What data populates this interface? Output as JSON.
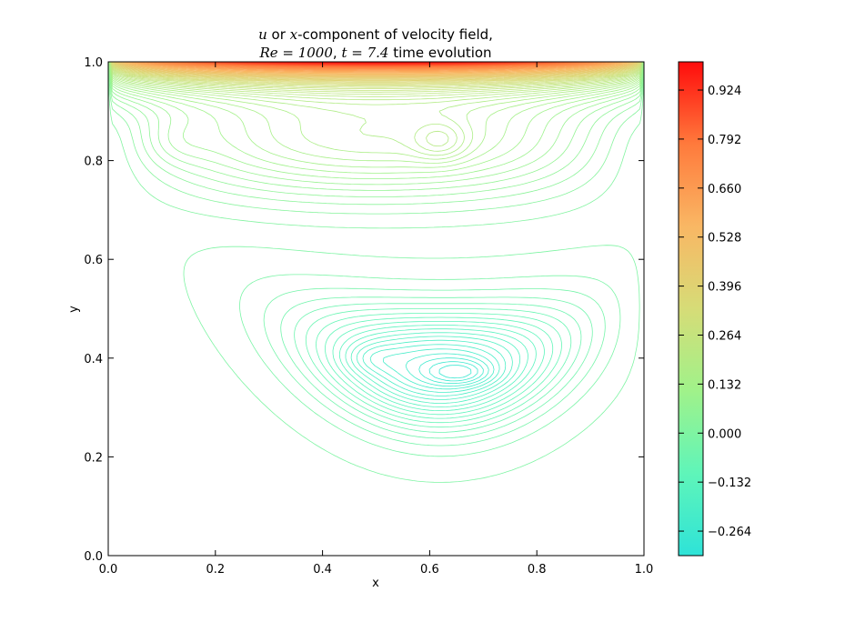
{
  "chart_data": {
    "type": "contour",
    "title_line1": {
      "var_u": "u",
      "mid1": " or ",
      "var_x": "x",
      "rest": "-component of velocity field,"
    },
    "title_line2": {
      "re": "Re = 1000",
      "sep": ", ",
      "t": "t = 7.4",
      "rest": " time evolution"
    },
    "xlabel": "x",
    "ylabel": "y",
    "xlim": [
      0.0,
      1.0
    ],
    "ylim": [
      0.0,
      1.0
    ],
    "xticks": [
      "0.0",
      "0.2",
      "0.4",
      "0.6",
      "0.8",
      "1.0"
    ],
    "yticks": [
      "0.0",
      "0.2",
      "0.4",
      "0.6",
      "0.8",
      "1.0"
    ],
    "colorbar": {
      "range": [
        -0.33,
        1.0
      ],
      "ticks": [
        {
          "value": 0.924,
          "label": "0.924"
        },
        {
          "value": 0.792,
          "label": "0.792"
        },
        {
          "value": 0.66,
          "label": "0.660"
        },
        {
          "value": 0.528,
          "label": "0.528"
        },
        {
          "value": 0.396,
          "label": "0.396"
        },
        {
          "value": 0.264,
          "label": "0.264"
        },
        {
          "value": 0.132,
          "label": "0.132"
        },
        {
          "value": 0.0,
          "label": "0.000"
        },
        {
          "value": -0.132,
          "label": "−0.132"
        },
        {
          "value": -0.264,
          "label": "−0.264"
        }
      ],
      "colormap": [
        "#2ee3d8",
        "#5ff5b9",
        "#a0f28a",
        "#d6dc77",
        "#f9b764",
        "#ff7a3c",
        "#ff0c0c"
      ]
    },
    "features": {
      "lid_velocity": 1.0,
      "main_vortex_min": {
        "x": 0.66,
        "y": 0.37,
        "u": -0.3
      },
      "secondary_min": {
        "x": 0.49,
        "y": 0.4,
        "u": -0.27
      },
      "upper_eddy": {
        "x": 0.62,
        "y": 0.84,
        "u": 0.12
      },
      "left_eddy": {
        "x": 0.12,
        "y": 0.84,
        "u": 0.04
      },
      "contour_levels": 90
    }
  }
}
